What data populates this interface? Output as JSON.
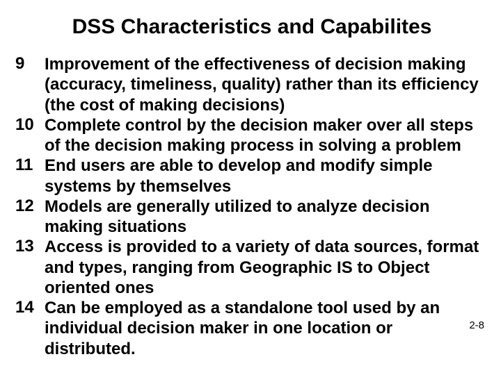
{
  "title": "DSS Characteristics and Capabilites",
  "title_fontsize": 30,
  "body_fontsize": 24,
  "text_color": "#000000",
  "background_color": "#ffffff",
  "page_number": "2-8",
  "page_number_fontsize": 15,
  "items": [
    {
      "num": "9",
      "text": "Improvement of the effectiveness of decision making (accuracy, timeliness, quality) rather than its efficiency (the cost of making decisions)"
    },
    {
      "num": "10",
      "text": "Complete control by the decision maker over all steps of the decision making process in solving a problem"
    },
    {
      "num": "11",
      "text": "End users are able to develop and modify simple systems by themselves"
    },
    {
      "num": "12",
      "text": "Models are generally utilized to analyze decision making situations"
    },
    {
      "num": "13",
      "text": "Access is provided to a variety of data sources, format and types, ranging from Geographic IS to Object oriented ones"
    },
    {
      "num": "14",
      "text": "Can be employed as a standalone tool used by an individual decision maker in one location or distributed."
    }
  ]
}
